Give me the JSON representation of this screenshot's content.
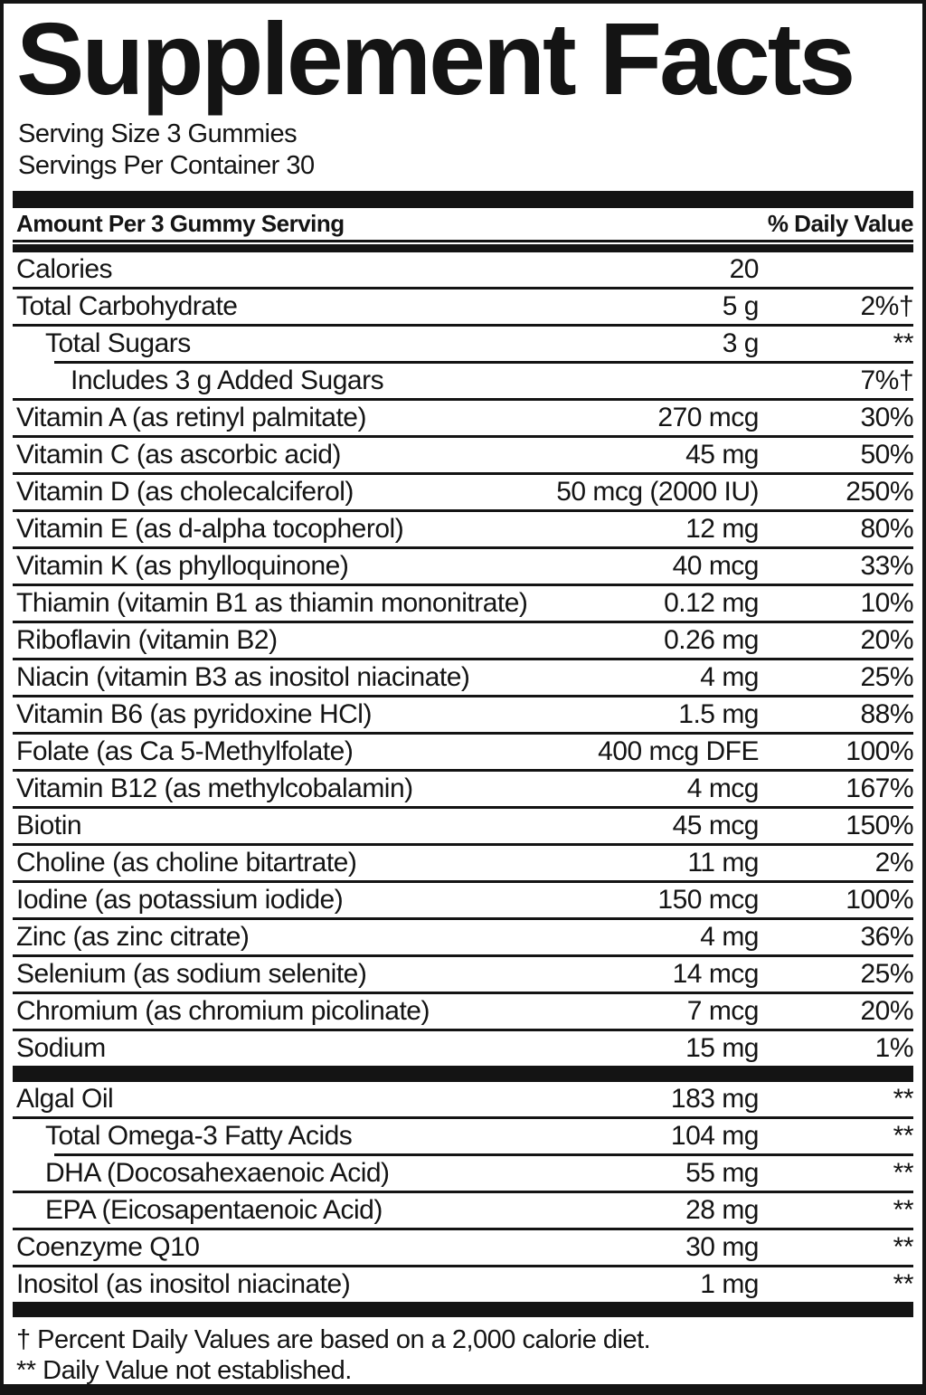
{
  "title": "Supplement Facts",
  "serving": {
    "size": "Serving Size 3 Gummies",
    "per_container": "Servings Per Container 30"
  },
  "header": {
    "left": "Amount Per 3 Gummy Serving",
    "right": "% Daily Value"
  },
  "colors": {
    "ink": "#141414",
    "paper": "#ffffff"
  },
  "main_rows": [
    {
      "name": "Calories",
      "amount": "20",
      "dv": "",
      "indent": 0,
      "sep": "none"
    },
    {
      "name": "Total Carbohydrate",
      "amount": "5 g",
      "dv": "2%†",
      "indent": 0,
      "sep": "full"
    },
    {
      "name": "Total Sugars",
      "amount": "3 g",
      "dv": "**",
      "indent": 1,
      "sep": "full"
    },
    {
      "name": "Includes 3 g Added Sugars",
      "amount": "",
      "dv": "7%†",
      "indent": 2,
      "sep": "indent"
    },
    {
      "name": "Vitamin A (as retinyl palmitate)",
      "amount": "270 mcg",
      "dv": "30%",
      "indent": 0,
      "sep": "full"
    },
    {
      "name": "Vitamin C (as ascorbic acid)",
      "amount": "45 mg",
      "dv": "50%",
      "indent": 0,
      "sep": "full"
    },
    {
      "name": "Vitamin D (as cholecalciferol)",
      "amount": "50 mcg (2000 IU)",
      "dv": "250%",
      "indent": 0,
      "sep": "full"
    },
    {
      "name": "Vitamin E (as d-alpha tocopherol)",
      "amount": "12 mg",
      "dv": "80%",
      "indent": 0,
      "sep": "full"
    },
    {
      "name": "Vitamin K (as phylloquinone)",
      "amount": "40 mcg",
      "dv": "33%",
      "indent": 0,
      "sep": "full"
    },
    {
      "name": "Thiamin (vitamin B1 as thiamin mononitrate)",
      "amount": "0.12 mg",
      "dv": "10%",
      "indent": 0,
      "sep": "full"
    },
    {
      "name": "Riboflavin (vitamin B2)",
      "amount": "0.26 mg",
      "dv": "20%",
      "indent": 0,
      "sep": "full"
    },
    {
      "name": "Niacin (vitamin B3 as inositol niacinate)",
      "amount": "4 mg",
      "dv": "25%",
      "indent": 0,
      "sep": "full"
    },
    {
      "name": "Vitamin B6 (as pyridoxine HCl)",
      "amount": "1.5 mg",
      "dv": "88%",
      "indent": 0,
      "sep": "full"
    },
    {
      "name": "Folate (as Ca 5-Methylfolate)",
      "amount": "400 mcg DFE",
      "dv": "100%",
      "indent": 0,
      "sep": "full"
    },
    {
      "name": "Vitamin B12 (as methylcobalamin)",
      "amount": "4 mcg",
      "dv": "167%",
      "indent": 0,
      "sep": "full"
    },
    {
      "name": "Biotin",
      "amount": "45 mcg",
      "dv": "150%",
      "indent": 0,
      "sep": "full"
    },
    {
      "name": "Choline (as choline bitartrate)",
      "amount": "11 mg",
      "dv": "2%",
      "indent": 0,
      "sep": "full"
    },
    {
      "name": "Iodine (as potassium iodide)",
      "amount": "150 mcg",
      "dv": "100%",
      "indent": 0,
      "sep": "full"
    },
    {
      "name": "Zinc (as zinc citrate)",
      "amount": "4 mg",
      "dv": "36%",
      "indent": 0,
      "sep": "full"
    },
    {
      "name": "Selenium (as sodium selenite)",
      "amount": "14 mcg",
      "dv": "25%",
      "indent": 0,
      "sep": "full"
    },
    {
      "name": "Chromium (as chromium picolinate)",
      "amount": "7 mcg",
      "dv": "20%",
      "indent": 0,
      "sep": "full"
    },
    {
      "name": "Sodium",
      "amount": "15 mg",
      "dv": "1%",
      "indent": 0,
      "sep": "full"
    }
  ],
  "extra_rows": [
    {
      "name": "Algal Oil",
      "amount": "183 mg",
      "dv": "**",
      "indent": 0,
      "sep": "none"
    },
    {
      "name": "Total Omega-3 Fatty Acids",
      "amount": "104 mg",
      "dv": "**",
      "indent": 1,
      "sep": "full"
    },
    {
      "name": "DHA (Docosahexaenoic Acid)",
      "amount": "55 mg",
      "dv": "**",
      "indent": 1,
      "sep": "indent"
    },
    {
      "name": "EPA (Eicosapentaenoic Acid)",
      "amount": "28 mg",
      "dv": "**",
      "indent": 1,
      "sep": "full"
    },
    {
      "name": "Coenzyme Q10",
      "amount": "30 mg",
      "dv": "**",
      "indent": 0,
      "sep": "full"
    },
    {
      "name": "Inositol (as inositol niacinate)",
      "amount": "1 mg",
      "dv": "**",
      "indent": 0,
      "sep": "full"
    }
  ],
  "footnotes": [
    "† Percent Daily Values are based on a 2,000 calorie diet.",
    "** Daily Value not established."
  ]
}
